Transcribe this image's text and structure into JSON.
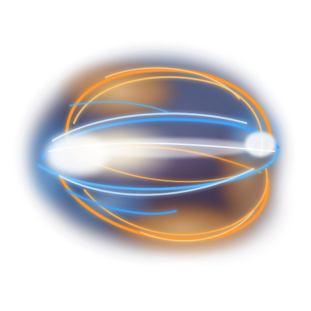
{
  "scene": {
    "subject": "glowing-energy-orb",
    "background_color": "#ffffff",
    "palette": {
      "warm_core": "#fff4d6",
      "orange": "#ff9a2e",
      "deep_orange": "#c85a12",
      "blue": "#3fa6ff",
      "cyan": "#bfe8ff",
      "smoke": "#5a6f9a",
      "shadow": "#3a2a3a"
    }
  }
}
